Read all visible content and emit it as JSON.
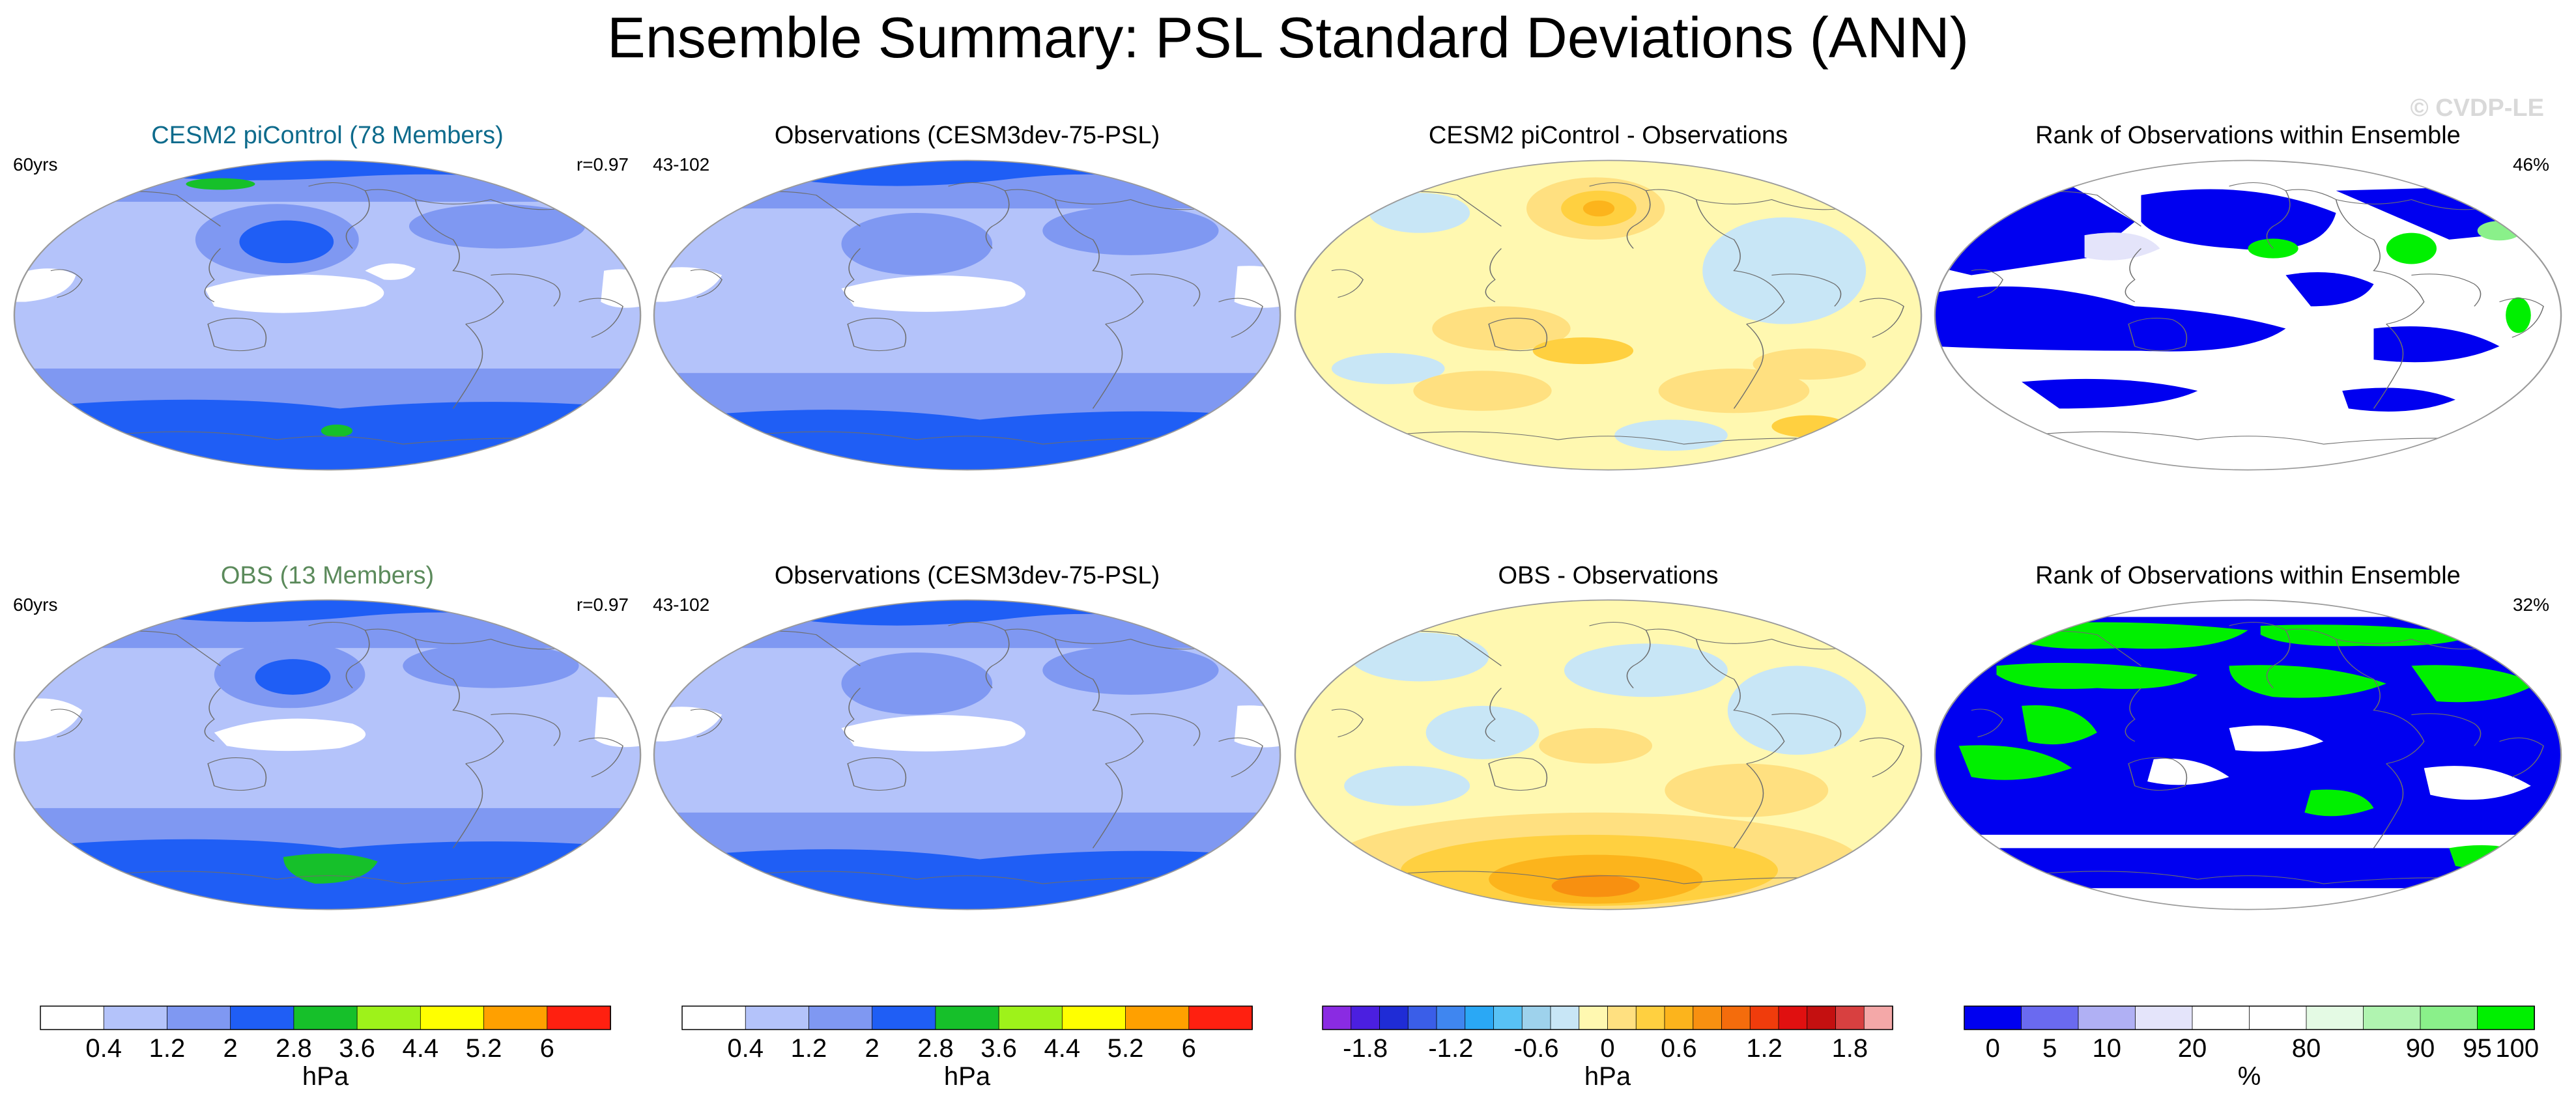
{
  "title": "Ensemble Summary: PSL Standard Deviations (ANN)",
  "watermark": "© CVDP-LE",
  "panels": [
    {
      "id": "r1c1",
      "title": "CESM2 piControl (78 Members)",
      "title_color": "#0e6b8c",
      "left_note": "60yrs",
      "right_note": "r=0.97",
      "kind": "std-model"
    },
    {
      "id": "r1c2",
      "title": "Observations (CESM3dev-75-PSL)",
      "title_color": "#000000",
      "left_note": "43-102",
      "right_note": "",
      "kind": "std-obs"
    },
    {
      "id": "r1c3",
      "title": "CESM2 piControl - Observations",
      "title_color": "#000000",
      "left_note": "",
      "right_note": "",
      "kind": "diff-model"
    },
    {
      "id": "r1c4",
      "title": "Rank of Observations within Ensemble",
      "title_color": "#000000",
      "left_note": "",
      "right_note": "46%",
      "kind": "rank-a"
    },
    {
      "id": "r2c1",
      "title": "OBS (13 Members)",
      "title_color": "#5b8a5b",
      "left_note": "60yrs",
      "right_note": "r=0.97",
      "kind": "std-obsens"
    },
    {
      "id": "r2c2",
      "title": "Observations (CESM3dev-75-PSL)",
      "title_color": "#000000",
      "left_note": "43-102",
      "right_note": "",
      "kind": "std-obs"
    },
    {
      "id": "r2c3",
      "title": "OBS - Observations",
      "title_color": "#000000",
      "left_note": "",
      "right_note": "",
      "kind": "diff-obs"
    },
    {
      "id": "r2c4",
      "title": "Rank of Observations within Ensemble",
      "title_color": "#000000",
      "left_note": "",
      "right_note": "32%",
      "kind": "rank-b"
    }
  ],
  "colorbars": [
    {
      "id": "cb-std-1",
      "colors": [
        "#ffffff",
        "#b4c3fa",
        "#7f98f2",
        "#1f5ef5",
        "#16c02a",
        "#9ef21a",
        "#ffff00",
        "#ffa000",
        "#ff2010"
      ],
      "tick_labels": [
        "0.4",
        "1.2",
        "2",
        "2.8",
        "3.6",
        "4.4",
        "5.2",
        "6"
      ],
      "tick_positions": [
        1,
        2,
        3,
        4,
        5,
        6,
        7,
        8
      ],
      "unit": "hPa"
    },
    {
      "id": "cb-std-2",
      "colors": [
        "#ffffff",
        "#b4c3fa",
        "#7f98f2",
        "#1f5ef5",
        "#16c02a",
        "#9ef21a",
        "#ffff00",
        "#ffa000",
        "#ff2010"
      ],
      "tick_labels": [
        "0.4",
        "1.2",
        "2",
        "2.8",
        "3.6",
        "4.4",
        "5.2",
        "6"
      ],
      "tick_positions": [
        1,
        2,
        3,
        4,
        5,
        6,
        7,
        8
      ],
      "unit": "hPa"
    },
    {
      "id": "cb-diff",
      "colors": [
        "#8a2be2",
        "#4b1fe0",
        "#1f2cd6",
        "#3a5ee8",
        "#3f86f0",
        "#2aa8f5",
        "#58c2f5",
        "#9ed2ec",
        "#c8e6f6",
        "#fff8b0",
        "#ffe080",
        "#ffd040",
        "#fcb41c",
        "#f89010",
        "#f46c0c",
        "#f03c0c",
        "#e01010",
        "#c41010",
        "#d84040",
        "#f4a8a8"
      ],
      "tick_labels": [
        "-1.8",
        "-1.2",
        "-0.6",
        "0",
        "0.6",
        "1.2",
        "1.8"
      ],
      "tick_positions": [
        1.5,
        4.5,
        7.5,
        10,
        12.5,
        15.5,
        18.5
      ],
      "unit": "hPa"
    },
    {
      "id": "cb-rank",
      "colors": [
        "#0000f0",
        "#6a6af0",
        "#b0b0f4",
        "#e4e4fa",
        "#ffffff",
        "#ffffff",
        "#e4fae4",
        "#b0f4b0",
        "#8af08a",
        "#00f000"
      ],
      "tick_labels": [
        "0",
        "5",
        "10",
        "20",
        "80",
        "90",
        "95",
        "100"
      ],
      "tick_positions": [
        0.5,
        1.5,
        2.5,
        4,
        6,
        8,
        9,
        9.7
      ],
      "unit": "%"
    }
  ],
  "colors": {
    "background": "#ffffff",
    "coast": "#6d6d6d",
    "map_border": "#9a9a9a",
    "watermark": "#d9d9d9"
  }
}
